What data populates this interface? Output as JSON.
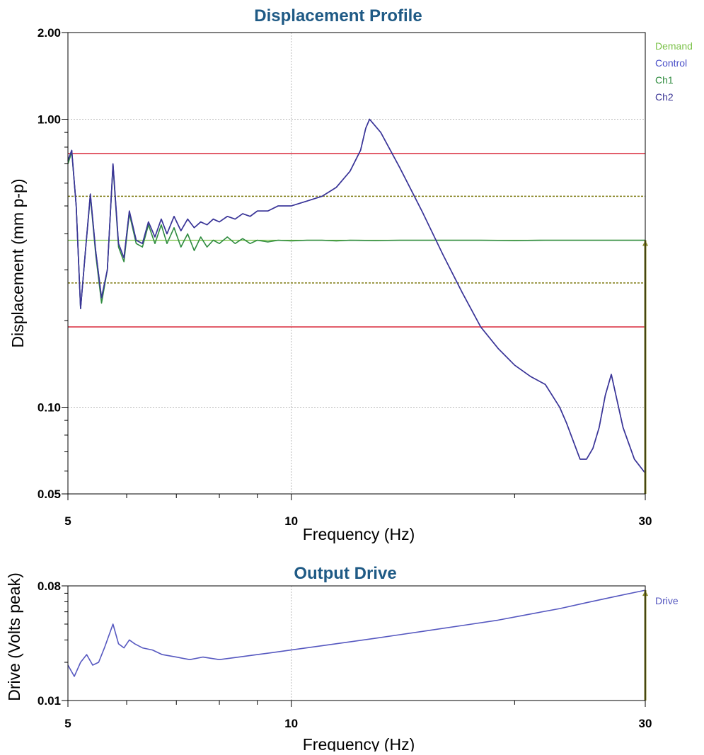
{
  "colors": {
    "title": "#1F5A85",
    "demand": "#7CC24A",
    "control": "#4A4FC8",
    "ch1": "#2E8B3E",
    "ch2": "#3B3595",
    "abort_limit": "#D9293A",
    "alarm_limit": "#7E7A12",
    "drive": "#5658C0",
    "marker": "#8A8A2A",
    "grid": "#BBBBBB"
  },
  "chart_data": [
    {
      "type": "line",
      "title": "Displacement Profile",
      "xlabel": "Frequency (Hz)",
      "ylabel": "Displacement (mm p-p)",
      "x_scale": "log",
      "y_scale": "log",
      "xlim": [
        5,
        30
      ],
      "ylim": [
        0.05,
        2.0
      ],
      "x_ticks": [
        5,
        10,
        30
      ],
      "x_tick_labels": [
        "5",
        "10",
        "30"
      ],
      "y_ticks": [
        0.05,
        0.1,
        1.0,
        2.0
      ],
      "y_tick_labels": [
        "0.05",
        "0.10",
        "1.00",
        "2.00"
      ],
      "grid": true,
      "legend_position": "right",
      "legend": [
        "Demand",
        "Control",
        "Ch1",
        "Ch2"
      ],
      "reference_lines": [
        {
          "kind": "abort",
          "y": 0.76
        },
        {
          "kind": "abort",
          "y": 0.19
        },
        {
          "kind": "alarm",
          "y": 0.54
        },
        {
          "kind": "alarm",
          "y": 0.27
        }
      ],
      "current_frequency": 30,
      "series": [
        {
          "name": "Demand",
          "x": [
            5,
            30
          ],
          "y": [
            0.38,
            0.38
          ]
        },
        {
          "name": "Ch1",
          "x": [
            5,
            5.06,
            5.13,
            5.2,
            5.28,
            5.36,
            5.45,
            5.55,
            5.65,
            5.75,
            5.85,
            5.95,
            6.05,
            6.18,
            6.3,
            6.42,
            6.55,
            6.68,
            6.8,
            6.95,
            7.1,
            7.25,
            7.4,
            7.55,
            7.7,
            7.85,
            8.0,
            8.2,
            8.4,
            8.6,
            8.8,
            9.0,
            9.3,
            9.6,
            10.0,
            10.5,
            11.0,
            11.5,
            12,
            13,
            14,
            16,
            18,
            20,
            22,
            25,
            28,
            30
          ],
          "y": [
            0.7,
            0.77,
            0.5,
            0.22,
            0.35,
            0.54,
            0.34,
            0.23,
            0.3,
            0.69,
            0.36,
            0.32,
            0.47,
            0.37,
            0.36,
            0.43,
            0.37,
            0.43,
            0.37,
            0.42,
            0.36,
            0.4,
            0.35,
            0.39,
            0.36,
            0.38,
            0.37,
            0.39,
            0.37,
            0.385,
            0.37,
            0.38,
            0.375,
            0.38,
            0.378,
            0.38,
            0.38,
            0.378,
            0.38,
            0.379,
            0.38,
            0.38,
            0.38,
            0.379,
            0.38,
            0.38,
            0.38,
            0.38
          ]
        },
        {
          "name": "Control",
          "x": [
            5,
            5.06,
            5.13,
            5.2,
            5.28,
            5.36,
            5.45,
            5.55,
            5.65,
            5.75,
            5.85,
            5.95,
            6.05,
            6.18,
            6.3,
            6.42,
            6.55,
            6.68,
            6.8,
            6.95,
            7.1,
            7.25,
            7.4,
            7.55,
            7.7,
            7.85,
            8.0,
            8.2,
            8.4,
            8.6,
            8.8,
            9.0,
            9.3,
            9.6,
            10.0,
            10.5,
            11.0,
            11.5,
            12.0,
            12.4,
            12.6,
            12.75,
            13.2,
            14.0,
            15.0,
            16.0,
            17.0,
            18.0,
            19.0,
            20.0,
            21.0,
            22.0,
            23.0,
            23.5,
            24.5,
            25.0,
            25.5,
            26.0,
            26.5,
            27.0,
            28.0,
            29.0,
            30.0
          ],
          "y": [
            0.72,
            0.78,
            0.5,
            0.22,
            0.35,
            0.55,
            0.35,
            0.24,
            0.3,
            0.7,
            0.37,
            0.33,
            0.48,
            0.38,
            0.37,
            0.44,
            0.39,
            0.45,
            0.4,
            0.46,
            0.41,
            0.45,
            0.42,
            0.44,
            0.43,
            0.45,
            0.44,
            0.46,
            0.45,
            0.47,
            0.46,
            0.48,
            0.48,
            0.5,
            0.5,
            0.52,
            0.54,
            0.58,
            0.66,
            0.78,
            0.93,
            1.0,
            0.9,
            0.68,
            0.48,
            0.34,
            0.25,
            0.19,
            0.16,
            0.14,
            0.128,
            0.12,
            0.1,
            0.088,
            0.066,
            0.066,
            0.072,
            0.085,
            0.11,
            0.13,
            0.085,
            0.066,
            0.059
          ]
        },
        {
          "name": "Ch2",
          "x": [
            5,
            5.06,
            5.13,
            5.2,
            5.28,
            5.36,
            5.45,
            5.55,
            5.65,
            5.75,
            5.85,
            5.95,
            6.05,
            6.18,
            6.3,
            6.42,
            6.55,
            6.68,
            6.8,
            6.95,
            7.1,
            7.25,
            7.4,
            7.55,
            7.7,
            7.85,
            8.0,
            8.2,
            8.4,
            8.6,
            8.8,
            9.0,
            9.3,
            9.6,
            10.0,
            10.5,
            11.0,
            11.5,
            12.0,
            12.4,
            12.6,
            12.75,
            13.2,
            14.0,
            15.0,
            16.0,
            17.0,
            18.0,
            19.0,
            20.0,
            21.0,
            22.0,
            23.0,
            23.5,
            24.5,
            25.0,
            25.5,
            26.0,
            26.5,
            27.0,
            28.0,
            29.0,
            30.0
          ],
          "y": [
            0.72,
            0.78,
            0.5,
            0.22,
            0.35,
            0.55,
            0.35,
            0.24,
            0.3,
            0.7,
            0.37,
            0.33,
            0.48,
            0.38,
            0.37,
            0.44,
            0.39,
            0.45,
            0.4,
            0.46,
            0.41,
            0.45,
            0.42,
            0.44,
            0.43,
            0.45,
            0.44,
            0.46,
            0.45,
            0.47,
            0.46,
            0.48,
            0.48,
            0.5,
            0.5,
            0.52,
            0.54,
            0.58,
            0.66,
            0.78,
            0.93,
            1.0,
            0.9,
            0.68,
            0.48,
            0.34,
            0.25,
            0.19,
            0.16,
            0.14,
            0.128,
            0.12,
            0.1,
            0.088,
            0.066,
            0.066,
            0.072,
            0.085,
            0.11,
            0.13,
            0.085,
            0.066,
            0.059
          ]
        }
      ]
    },
    {
      "type": "line",
      "title": "Output Drive",
      "xlabel": "Frequency (Hz)",
      "ylabel": "Drive (Volts peak)",
      "x_scale": "log",
      "y_scale": "log",
      "xlim": [
        5,
        30
      ],
      "ylim": [
        0.01,
        0.08
      ],
      "x_ticks": [
        5,
        10,
        30
      ],
      "x_tick_labels": [
        "5",
        "10",
        "30"
      ],
      "y_ticks": [
        0.01,
        0.08
      ],
      "y_tick_labels": [
        "0.01",
        "0.08"
      ],
      "grid": true,
      "legend_position": "right",
      "legend": [
        "Drive"
      ],
      "current_frequency": 30,
      "series": [
        {
          "name": "Drive",
          "x": [
            5,
            5.1,
            5.2,
            5.3,
            5.4,
            5.5,
            5.6,
            5.75,
            5.85,
            5.95,
            6.05,
            6.15,
            6.3,
            6.5,
            6.7,
            7.0,
            7.3,
            7.6,
            8.0,
            8.5,
            9.0,
            9.5,
            10.0,
            11,
            12,
            13,
            14,
            15,
            17,
            19,
            21,
            23,
            25,
            27,
            30
          ],
          "y": [
            0.019,
            0.0155,
            0.02,
            0.023,
            0.019,
            0.02,
            0.026,
            0.04,
            0.028,
            0.026,
            0.03,
            0.028,
            0.026,
            0.025,
            0.023,
            0.022,
            0.021,
            0.022,
            0.021,
            0.022,
            0.023,
            0.024,
            0.025,
            0.027,
            0.029,
            0.031,
            0.033,
            0.035,
            0.039,
            0.043,
            0.048,
            0.053,
            0.059,
            0.065,
            0.074
          ]
        }
      ]
    }
  ]
}
